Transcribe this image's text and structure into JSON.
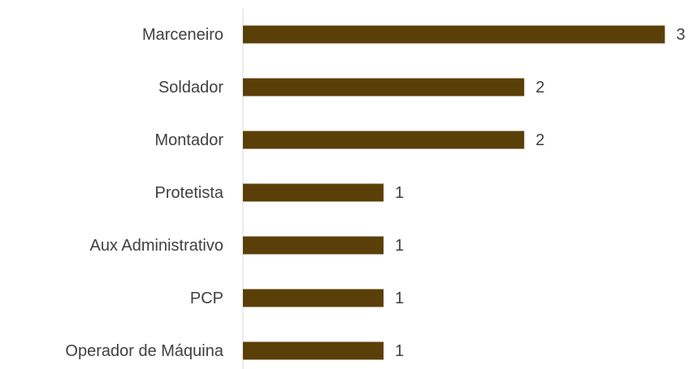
{
  "chart_data": {
    "type": "bar",
    "orientation": "horizontal",
    "categories": [
      "Marceneiro",
      "Soldador",
      "Montador",
      "Protetista",
      "Aux Administrativo",
      "PCP",
      "Operador de Máquina"
    ],
    "values": [
      3,
      2,
      2,
      1,
      1,
      1,
      1
    ],
    "color": "#5b3f08",
    "xlim": [
      0,
      3.2
    ]
  }
}
